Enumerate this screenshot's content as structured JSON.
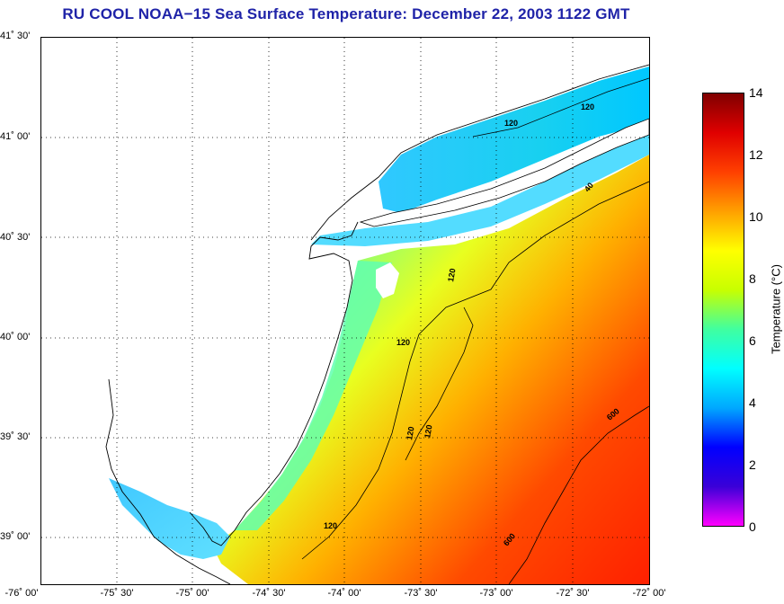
{
  "title": "RU COOL  NOAA−15  Sea Surface Temperature:  December 22, 2003 1122 GMT",
  "lat_labels": [
    {
      "text": "41˚ 30'",
      "lat": 41.5
    },
    {
      "text": "41˚ 00'",
      "lat": 41.0
    },
    {
      "text": "40˚ 30'",
      "lat": 40.5
    },
    {
      "text": "40˚ 00'",
      "lat": 40.0
    },
    {
      "text": "39˚ 30'",
      "lat": 39.5
    },
    {
      "text": "39˚ 00'",
      "lat": 39.0
    }
  ],
  "lon_labels": [
    {
      "text": "-76˚ 00'",
      "lon": -76.0
    },
    {
      "text": "-75˚ 30'",
      "lon": -75.5
    },
    {
      "text": "-75˚ 00'",
      "lon": -75.0
    },
    {
      "text": "-74˚ 30'",
      "lon": -74.5
    },
    {
      "text": "-74˚ 00'",
      "lon": -74.0
    },
    {
      "text": "-73˚ 30'",
      "lon": -73.5
    },
    {
      "text": "-73˚ 00'",
      "lon": -73.0
    },
    {
      "text": "-72˚ 30'",
      "lon": -72.5
    },
    {
      "text": "-72˚ 00'",
      "lon": -72.0
    }
  ],
  "colorbar": {
    "label": "Temperature (°C)",
    "min": 0,
    "max": 14,
    "ticks": [
      "0",
      "2",
      "4",
      "6",
      "8",
      "10",
      "12",
      "14"
    ],
    "colors": [
      "#ff00ff",
      "#3a00d8",
      "#0000ff",
      "#00a8ff",
      "#00ffff",
      "#40ffa0",
      "#c8ff00",
      "#ffff00",
      "#ffa000",
      "#ff4000",
      "#e00000",
      "#800000"
    ]
  },
  "contours": {
    "labels": [
      "120",
      "120",
      "120",
      "120",
      "120",
      "120",
      "120",
      "600",
      "600",
      "40"
    ]
  },
  "colors": {
    "title": "#1f23a8",
    "land": "#ffffff",
    "coast": "#000000"
  }
}
